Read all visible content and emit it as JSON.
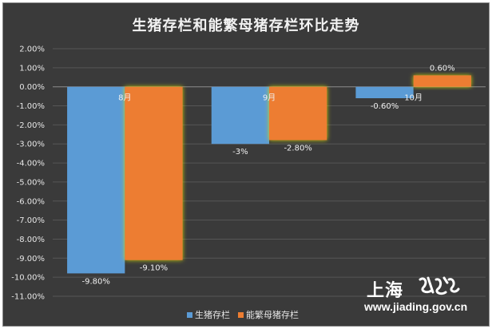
{
  "chart_data": {
    "type": "bar",
    "title": "生猪存栏和能繁母猪存栏环比走势",
    "categories": [
      "8月",
      "9月",
      "10月"
    ],
    "series": [
      {
        "name": "生猪存栏",
        "values": [
          -9.8,
          -3.0,
          -0.6
        ],
        "labels": [
          "-9.80%",
          "-3%",
          "-0.60%"
        ],
        "color": "#5b9bd5"
      },
      {
        "name": "能繁母猪存栏",
        "values": [
          -9.1,
          -2.8,
          0.6
        ],
        "labels": [
          "-9.10%",
          "-2.80%",
          "0.60%"
        ],
        "color": "#ed7d31"
      }
    ],
    "ylim": [
      -11,
      2
    ],
    "yticks": [
      "2.00%",
      "1.00%",
      "0.00%",
      "-1.00%",
      "-2.00%",
      "-3.00%",
      "-4.00%",
      "-5.00%",
      "-6.00%",
      "-7.00%",
      "-8.00%",
      "-9.00%",
      "-10.00%",
      "-11.00%"
    ],
    "grid": true,
    "legend_position": "bottom",
    "background": "#3a3a3a"
  },
  "watermark": {
    "brand": "上海",
    "seal": "嘉定",
    "url": "www.jiading.gov.cn"
  }
}
